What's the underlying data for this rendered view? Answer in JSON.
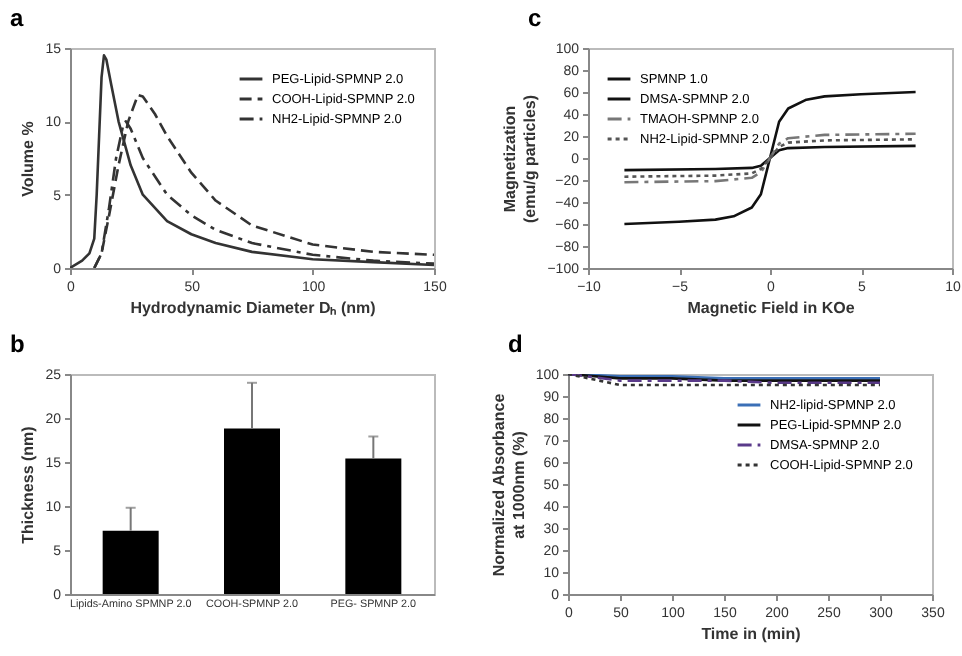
{
  "chart_data": [
    {
      "type": "line",
      "title": "a",
      "xlabel": "Hydrodynamic Diameter Dₕ (nm)",
      "ylabel": "Volume %",
      "xlim": [
        0,
        150
      ],
      "xticks": [
        0,
        50,
        100,
        150
      ],
      "ylim": [
        0,
        15
      ],
      "yticks": [
        0,
        5,
        10,
        15
      ],
      "legend": "top right",
      "series": [
        {
          "name": "PEG-Lipid-SPMNP 2.0",
          "color": "#333333",
          "line_style": "solid",
          "x": [
            0,
            5,
            8,
            10,
            11,
            12,
            13,
            14,
            15,
            17,
            20,
            25,
            30,
            40,
            50,
            60,
            75,
            100,
            125,
            150
          ],
          "values": [
            0,
            0.5,
            1,
            2,
            5,
            9,
            13,
            14.5,
            14.2,
            12.5,
            10,
            7,
            5,
            3.2,
            2.3,
            1.7,
            1.1,
            0.6,
            0.4,
            0.2
          ]
        },
        {
          "name": "COOH-Lipid-SPMNP 2.0",
          "color": "#333333",
          "line_style": "dashed",
          "x": [
            10,
            13,
            16,
            20,
            24,
            28,
            30,
            35,
            40,
            50,
            60,
            75,
            100,
            125,
            150
          ],
          "values": [
            0,
            1,
            3.5,
            7,
            10,
            11.8,
            11.7,
            10.5,
            9,
            6.5,
            4.6,
            2.9,
            1.6,
            1.1,
            0.9
          ]
        },
        {
          "name": "NH2-Lipid-SPMNP 2.0",
          "color": "#333333",
          "line_style": "dashdot",
          "x": [
            10,
            13,
            16,
            19,
            22,
            23,
            25,
            30,
            40,
            50,
            60,
            75,
            100,
            125,
            150
          ],
          "values": [
            0,
            1,
            4,
            7.5,
            9.8,
            10,
            9.5,
            7.5,
            5,
            3.6,
            2.6,
            1.7,
            0.9,
            0.5,
            0.3
          ]
        }
      ]
    },
    {
      "type": "line",
      "title": "c",
      "xlabel": "Magnetic Field in KOe",
      "ylabel": "Magnetization (emu/g particles)",
      "xlim": [
        -10,
        10
      ],
      "xticks": [
        -10,
        -5,
        0,
        5,
        10
      ],
      "ylim": [
        -100,
        100
      ],
      "yticks": [
        -100,
        -80,
        -60,
        -40,
        -20,
        0,
        20,
        40,
        60,
        80,
        100
      ],
      "legend": "top left",
      "series": [
        {
          "name": "SPMNP 1.0",
          "color": "#111111",
          "line_style": "solid",
          "x": [
            -8,
            -5,
            -3,
            -2,
            -1,
            -0.5,
            0,
            0.5,
            1,
            2,
            3,
            5,
            8
          ],
          "values": [
            -60,
            -58,
            -56,
            -53,
            -45,
            -33,
            0,
            33,
            45,
            53,
            56,
            58,
            60
          ]
        },
        {
          "name": "DMSA-SPMNP 2.0",
          "color": "#111111",
          "line_style": "solid",
          "x": [
            -8,
            -3,
            -1,
            -0.5,
            0,
            0.5,
            1,
            3,
            8
          ],
          "values": [
            -11,
            -10,
            -9,
            -7,
            0,
            7,
            9,
            10,
            11
          ]
        },
        {
          "name": "TMAOH-SPMNP 2.0",
          "color": "#777777",
          "line_style": "dashdot",
          "x": [
            -8,
            -3,
            -1,
            -0.5,
            0,
            0.5,
            1,
            3,
            8
          ],
          "values": [
            -22,
            -21,
            -18,
            -13,
            0,
            13,
            18,
            21,
            22
          ]
        },
        {
          "name": "NH2-Lipid-SPMNP 2.0",
          "color": "#555555",
          "line_style": "dotted",
          "x": [
            -8,
            -3,
            -1,
            -0.5,
            0,
            0.5,
            1,
            3,
            8
          ],
          "values": [
            -17,
            -16,
            -14,
            -10,
            0,
            10,
            14,
            16,
            17
          ]
        }
      ]
    },
    {
      "type": "bar",
      "title": "b",
      "ylabel": "Thickness (nm)",
      "categories": [
        "Lipids-Amino SPMNP 2.0",
        "COOH-SPMNP 2.0",
        "PEG- SPMNP 2.0"
      ],
      "values": [
        7.2,
        18.8,
        15.4
      ],
      "errors": [
        [
          7.2,
          9.8
        ],
        [
          18.8,
          24
        ],
        [
          15.4,
          17.9
        ]
      ],
      "color": "#000000",
      "ylim": [
        0,
        25
      ],
      "yticks": [
        0,
        5,
        10,
        15,
        20,
        25
      ]
    },
    {
      "type": "line",
      "title": "d",
      "xlabel": "Time in (min)",
      "ylabel": "Normalized Absorbance at 1000nm (%)",
      "xlim": [
        0,
        350
      ],
      "xticks": [
        0,
        50,
        100,
        150,
        200,
        250,
        300,
        350
      ],
      "ylim": [
        0,
        100
      ],
      "yticks": [
        0,
        10,
        20,
        30,
        40,
        50,
        60,
        70,
        80,
        90,
        100
      ],
      "legend": "top right",
      "series": [
        {
          "name": "NH2-lipid-SPMNP 2.0",
          "color": "#3b6fb6",
          "line_style": "solid",
          "x": [
            0,
            50,
            100,
            150,
            200,
            250,
            300
          ],
          "values": [
            100,
            99,
            99,
            98,
            98,
            98,
            98
          ]
        },
        {
          "name": "PEG-Lipid-SPMNP 2.0",
          "color": "#111111",
          "line_style": "solid",
          "x": [
            0,
            50,
            100,
            150,
            200,
            250,
            300
          ],
          "values": [
            100,
            98,
            98,
            97,
            97,
            97,
            97
          ]
        },
        {
          "name": "DMSA-SPMNP 2.0",
          "color": "#5a3a8a",
          "line_style": "dashdot",
          "x": [
            0,
            50,
            100,
            150,
            200,
            250,
            300
          ],
          "values": [
            100,
            97,
            97,
            97,
            96,
            96,
            96
          ]
        },
        {
          "name": "COOH-Lipid-SPMNP 2.0",
          "color": "#333333",
          "line_style": "dotted",
          "x": [
            0,
            50,
            100,
            150,
            200,
            250,
            300
          ],
          "values": [
            100,
            95,
            95,
            95,
            95,
            95,
            95
          ]
        }
      ]
    }
  ]
}
